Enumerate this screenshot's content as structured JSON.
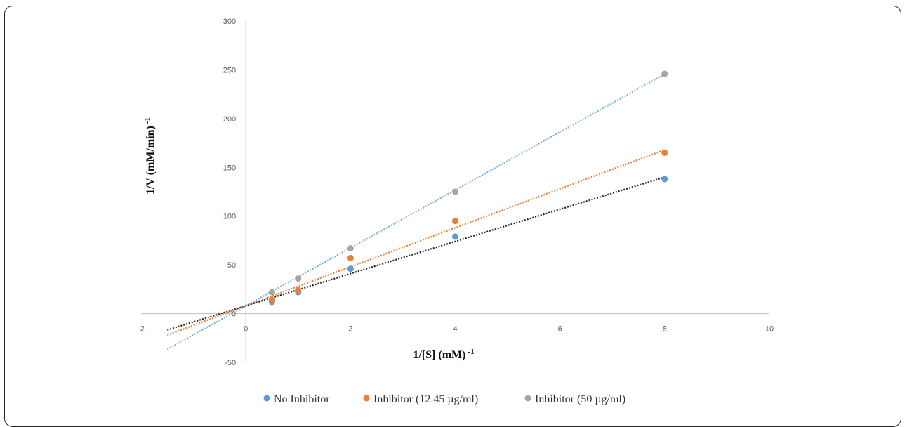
{
  "chart_data": {
    "type": "scatter",
    "title": "",
    "xlabel": "1/[S] (mM)",
    "xlabel_sup": "-1",
    "ylabel": "1/V (mM/min)",
    "ylabel_sup": "-1",
    "xlim": [
      -2,
      10
    ],
    "ylim": [
      -50,
      300
    ],
    "x_ticks": [
      "-2",
      "0",
      "2",
      "4",
      "6",
      "8",
      "10"
    ],
    "y_ticks": [
      "-50",
      "0",
      "50",
      "100",
      "150",
      "200",
      "250",
      "300"
    ],
    "grid": false,
    "legend": "bottom",
    "trendline_x_range": [
      -1.5,
      8
    ],
    "series": [
      {
        "name": "No Inhibitor",
        "color": "#5B9BD5",
        "trendline_color": "#222222",
        "x": [
          0.5,
          1,
          2,
          4,
          8
        ],
        "y": [
          12,
          22,
          46,
          79,
          138
        ],
        "trendline": {
          "slope": 16.5,
          "intercept": 8
        }
      },
      {
        "name": "Inhibitor (12.45 µg/ml)",
        "color": "#ED7D31",
        "trendline_color": "#ED7D31",
        "x": [
          0.5,
          1,
          2,
          4,
          8
        ],
        "y": [
          14,
          24,
          57,
          95,
          165
        ],
        "trendline": {
          "slope": 20,
          "intercept": 8
        }
      },
      {
        "name": "Inhibitor (50 µg/ml)",
        "color": "#A5A5A5",
        "trendline_color": "#7BB1DD",
        "x": [
          0.5,
          1,
          2,
          4,
          8
        ],
        "y": [
          22,
          36,
          67,
          125,
          246
        ],
        "trendline": {
          "slope": 29.7,
          "intercept": 8
        }
      }
    ]
  }
}
